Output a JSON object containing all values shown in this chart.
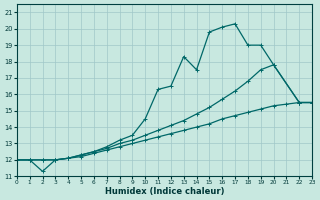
{
  "xlabel": "Humidex (Indice chaleur)",
  "background_color": "#c8e8e0",
  "grid_color": "#a0c8c8",
  "line_color": "#006868",
  "xlim": [
    0,
    23
  ],
  "ylim": [
    11,
    21.5
  ],
  "xticks": [
    0,
    1,
    2,
    3,
    4,
    5,
    6,
    7,
    8,
    9,
    10,
    11,
    12,
    13,
    14,
    15,
    16,
    17,
    18,
    19,
    20,
    21,
    22,
    23
  ],
  "yticks": [
    11,
    12,
    13,
    14,
    15,
    16,
    17,
    18,
    19,
    20,
    21
  ],
  "line1_x": [
    0,
    1,
    2,
    3,
    4,
    5,
    6,
    7,
    8,
    9,
    10,
    11,
    12,
    13,
    14,
    15,
    16,
    17,
    18,
    19,
    20,
    21,
    22,
    23
  ],
  "line1_y": [
    12.0,
    12.0,
    12.0,
    12.0,
    12.1,
    12.2,
    12.4,
    12.6,
    12.8,
    13.0,
    13.2,
    13.4,
    13.6,
    13.8,
    14.0,
    14.2,
    14.5,
    14.7,
    14.9,
    15.1,
    15.3,
    15.4,
    15.5,
    15.5
  ],
  "line2_x": [
    0,
    1,
    2,
    3,
    4,
    5,
    6,
    7,
    8,
    9,
    10,
    11,
    12,
    13,
    14,
    15,
    16,
    17,
    18,
    19,
    20,
    22,
    23
  ],
  "line2_y": [
    12.0,
    12.0,
    12.0,
    12.0,
    12.1,
    12.3,
    12.5,
    12.7,
    13.0,
    13.2,
    13.5,
    13.8,
    14.1,
    14.4,
    14.8,
    15.2,
    15.7,
    16.2,
    16.8,
    17.5,
    17.8,
    15.5,
    15.5
  ],
  "line3_x": [
    0,
    1,
    2,
    3,
    4,
    5,
    6,
    7,
    8,
    9,
    10,
    11,
    12,
    13,
    14,
    15,
    16,
    17,
    18,
    19,
    20,
    22,
    23
  ],
  "line3_y": [
    12.0,
    12.0,
    11.3,
    12.0,
    12.1,
    12.3,
    12.5,
    12.8,
    13.2,
    13.5,
    14.5,
    16.3,
    16.5,
    18.3,
    17.5,
    19.8,
    20.1,
    20.3,
    19.0,
    19.0,
    17.8,
    15.5,
    15.5
  ]
}
